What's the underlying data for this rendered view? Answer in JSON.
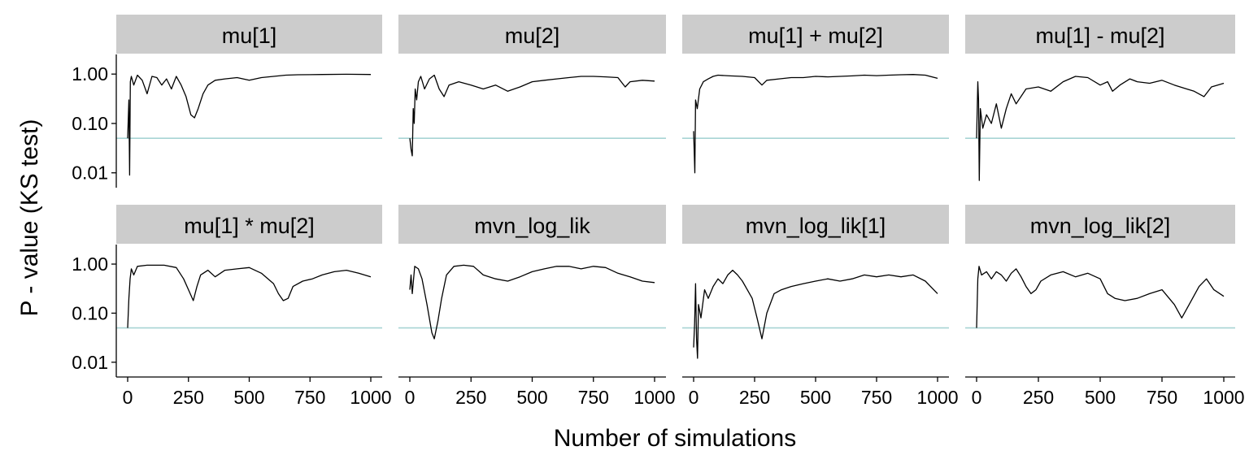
{
  "chart_data": {
    "type": "line",
    "layout": "facet-grid 2 rows x 4 columns",
    "xlabel": "Number of simulations",
    "ylabel": "P - value (KS test)",
    "y_scale": "log10",
    "xlim": [
      0,
      1000
    ],
    "ylim": [
      0.005,
      2.5
    ],
    "x_ticks": [
      0,
      250,
      500,
      750,
      1000
    ],
    "x_tick_labels": [
      "0",
      "250",
      "500",
      "750",
      "1000"
    ],
    "y_ticks": [
      1.0,
      0.1,
      0.01
    ],
    "y_tick_labels": [
      "1.00",
      "0.10",
      "0.01"
    ],
    "reference_line": {
      "y": 0.05
    },
    "grid": false,
    "legend": "none",
    "colors": {
      "series": "#000000",
      "reference_line": "#a8d4d4",
      "strip_background": "#cccccc",
      "axis": "#000000"
    },
    "panels": [
      {
        "title": "mu[1]",
        "points": [
          [
            0,
            0.05
          ],
          [
            5,
            0.3
          ],
          [
            8,
            0.009
          ],
          [
            11,
            0.7
          ],
          [
            15,
            0.9
          ],
          [
            25,
            0.6
          ],
          [
            40,
            0.95
          ],
          [
            60,
            0.75
          ],
          [
            80,
            0.4
          ],
          [
            100,
            0.9
          ],
          [
            120,
            0.85
          ],
          [
            140,
            0.6
          ],
          [
            160,
            0.8
          ],
          [
            180,
            0.5
          ],
          [
            200,
            0.9
          ],
          [
            220,
            0.6
          ],
          [
            240,
            0.35
          ],
          [
            260,
            0.15
          ],
          [
            275,
            0.13
          ],
          [
            290,
            0.2
          ],
          [
            310,
            0.4
          ],
          [
            330,
            0.6
          ],
          [
            360,
            0.75
          ],
          [
            400,
            0.8
          ],
          [
            450,
            0.85
          ],
          [
            500,
            0.75
          ],
          [
            550,
            0.85
          ],
          [
            600,
            0.9
          ],
          [
            650,
            0.95
          ],
          [
            700,
            0.97
          ],
          [
            800,
            0.98
          ],
          [
            900,
            0.99
          ],
          [
            1000,
            0.98
          ]
        ]
      },
      {
        "title": "mu[2]",
        "points": [
          [
            0,
            0.05
          ],
          [
            5,
            0.03
          ],
          [
            10,
            0.022
          ],
          [
            14,
            0.2
          ],
          [
            18,
            0.1
          ],
          [
            22,
            0.5
          ],
          [
            28,
            0.3
          ],
          [
            35,
            0.7
          ],
          [
            45,
            0.9
          ],
          [
            60,
            0.5
          ],
          [
            80,
            0.8
          ],
          [
            100,
            0.95
          ],
          [
            120,
            0.5
          ],
          [
            140,
            0.35
          ],
          [
            160,
            0.6
          ],
          [
            200,
            0.7
          ],
          [
            250,
            0.6
          ],
          [
            300,
            0.5
          ],
          [
            350,
            0.6
          ],
          [
            400,
            0.45
          ],
          [
            450,
            0.55
          ],
          [
            500,
            0.7
          ],
          [
            550,
            0.75
          ],
          [
            600,
            0.8
          ],
          [
            650,
            0.85
          ],
          [
            700,
            0.9
          ],
          [
            750,
            0.9
          ],
          [
            800,
            0.88
          ],
          [
            850,
            0.85
          ],
          [
            880,
            0.55
          ],
          [
            900,
            0.7
          ],
          [
            950,
            0.75
          ],
          [
            1000,
            0.72
          ]
        ]
      },
      {
        "title": "mu[1] + mu[2]",
        "points": [
          [
            0,
            0.07
          ],
          [
            5,
            0.01
          ],
          [
            8,
            0.3
          ],
          [
            15,
            0.2
          ],
          [
            25,
            0.5
          ],
          [
            40,
            0.7
          ],
          [
            60,
            0.8
          ],
          [
            80,
            0.9
          ],
          [
            100,
            0.95
          ],
          [
            150,
            0.92
          ],
          [
            200,
            0.9
          ],
          [
            250,
            0.85
          ],
          [
            280,
            0.6
          ],
          [
            300,
            0.75
          ],
          [
            350,
            0.8
          ],
          [
            400,
            0.85
          ],
          [
            450,
            0.85
          ],
          [
            500,
            0.9
          ],
          [
            550,
            0.88
          ],
          [
            600,
            0.9
          ],
          [
            650,
            0.92
          ],
          [
            700,
            0.95
          ],
          [
            750,
            0.93
          ],
          [
            800,
            0.95
          ],
          [
            850,
            0.97
          ],
          [
            900,
            0.98
          ],
          [
            950,
            0.95
          ],
          [
            1000,
            0.82
          ]
        ]
      },
      {
        "title": "mu[1] - mu[2]",
        "points": [
          [
            0,
            0.05
          ],
          [
            5,
            0.7
          ],
          [
            8,
            0.3
          ],
          [
            11,
            0.007
          ],
          [
            15,
            0.2
          ],
          [
            25,
            0.08
          ],
          [
            40,
            0.15
          ],
          [
            60,
            0.1
          ],
          [
            80,
            0.25
          ],
          [
            100,
            0.08
          ],
          [
            120,
            0.2
          ],
          [
            140,
            0.4
          ],
          [
            160,
            0.25
          ],
          [
            200,
            0.5
          ],
          [
            250,
            0.55
          ],
          [
            300,
            0.45
          ],
          [
            350,
            0.7
          ],
          [
            400,
            0.9
          ],
          [
            450,
            0.85
          ],
          [
            500,
            0.6
          ],
          [
            530,
            0.7
          ],
          [
            550,
            0.45
          ],
          [
            580,
            0.6
          ],
          [
            620,
            0.8
          ],
          [
            650,
            0.7
          ],
          [
            700,
            0.65
          ],
          [
            750,
            0.75
          ],
          [
            800,
            0.6
          ],
          [
            850,
            0.5
          ],
          [
            880,
            0.45
          ],
          [
            920,
            0.35
          ],
          [
            950,
            0.55
          ],
          [
            1000,
            0.65
          ]
        ]
      },
      {
        "title": "mu[1] * mu[2]",
        "points": [
          [
            0,
            0.05
          ],
          [
            5,
            0.2
          ],
          [
            10,
            0.5
          ],
          [
            15,
            0.8
          ],
          [
            25,
            0.6
          ],
          [
            40,
            0.9
          ],
          [
            80,
            0.95
          ],
          [
            150,
            0.95
          ],
          [
            200,
            0.85
          ],
          [
            230,
            0.5
          ],
          [
            250,
            0.3
          ],
          [
            270,
            0.18
          ],
          [
            285,
            0.35
          ],
          [
            300,
            0.6
          ],
          [
            330,
            0.75
          ],
          [
            360,
            0.55
          ],
          [
            400,
            0.75
          ],
          [
            450,
            0.8
          ],
          [
            500,
            0.85
          ],
          [
            550,
            0.65
          ],
          [
            600,
            0.4
          ],
          [
            620,
            0.25
          ],
          [
            640,
            0.18
          ],
          [
            660,
            0.2
          ],
          [
            680,
            0.35
          ],
          [
            720,
            0.45
          ],
          [
            760,
            0.5
          ],
          [
            800,
            0.6
          ],
          [
            850,
            0.7
          ],
          [
            900,
            0.75
          ],
          [
            950,
            0.65
          ],
          [
            1000,
            0.55
          ]
        ]
      },
      {
        "title": "mvn_log_lik",
        "points": [
          [
            0,
            0.3
          ],
          [
            5,
            0.6
          ],
          [
            10,
            0.25
          ],
          [
            20,
            0.9
          ],
          [
            35,
            0.8
          ],
          [
            50,
            0.5
          ],
          [
            70,
            0.15
          ],
          [
            90,
            0.04
          ],
          [
            100,
            0.03
          ],
          [
            115,
            0.07
          ],
          [
            130,
            0.2
          ],
          [
            150,
            0.6
          ],
          [
            180,
            0.9
          ],
          [
            220,
            0.95
          ],
          [
            260,
            0.9
          ],
          [
            300,
            0.6
          ],
          [
            350,
            0.5
          ],
          [
            400,
            0.45
          ],
          [
            450,
            0.55
          ],
          [
            500,
            0.7
          ],
          [
            550,
            0.8
          ],
          [
            600,
            0.9
          ],
          [
            650,
            0.9
          ],
          [
            700,
            0.8
          ],
          [
            750,
            0.9
          ],
          [
            800,
            0.85
          ],
          [
            850,
            0.65
          ],
          [
            900,
            0.55
          ],
          [
            950,
            0.45
          ],
          [
            1000,
            0.42
          ]
        ]
      },
      {
        "title": "mvn_log_lik[1]",
        "points": [
          [
            0,
            0.02
          ],
          [
            4,
            0.06
          ],
          [
            8,
            0.4
          ],
          [
            12,
            0.03
          ],
          [
            16,
            0.012
          ],
          [
            20,
            0.15
          ],
          [
            30,
            0.08
          ],
          [
            45,
            0.3
          ],
          [
            60,
            0.2
          ],
          [
            80,
            0.35
          ],
          [
            100,
            0.5
          ],
          [
            120,
            0.4
          ],
          [
            140,
            0.6
          ],
          [
            160,
            0.75
          ],
          [
            180,
            0.6
          ],
          [
            200,
            0.45
          ],
          [
            220,
            0.3
          ],
          [
            240,
            0.2
          ],
          [
            260,
            0.08
          ],
          [
            280,
            0.03
          ],
          [
            300,
            0.1
          ],
          [
            330,
            0.25
          ],
          [
            360,
            0.3
          ],
          [
            400,
            0.35
          ],
          [
            450,
            0.4
          ],
          [
            500,
            0.45
          ],
          [
            550,
            0.5
          ],
          [
            600,
            0.45
          ],
          [
            650,
            0.5
          ],
          [
            700,
            0.6
          ],
          [
            750,
            0.55
          ],
          [
            800,
            0.6
          ],
          [
            850,
            0.55
          ],
          [
            900,
            0.6
          ],
          [
            950,
            0.45
          ],
          [
            1000,
            0.25
          ]
        ]
      },
      {
        "title": "mvn_log_lik[2]",
        "points": [
          [
            0,
            0.05
          ],
          [
            5,
            0.5
          ],
          [
            10,
            0.9
          ],
          [
            20,
            0.6
          ],
          [
            40,
            0.7
          ],
          [
            60,
            0.5
          ],
          [
            80,
            0.7
          ],
          [
            100,
            0.6
          ],
          [
            120,
            0.45
          ],
          [
            140,
            0.65
          ],
          [
            160,
            0.8
          ],
          [
            180,
            0.55
          ],
          [
            200,
            0.35
          ],
          [
            220,
            0.25
          ],
          [
            240,
            0.3
          ],
          [
            260,
            0.45
          ],
          [
            300,
            0.6
          ],
          [
            350,
            0.7
          ],
          [
            400,
            0.55
          ],
          [
            450,
            0.65
          ],
          [
            500,
            0.5
          ],
          [
            530,
            0.25
          ],
          [
            560,
            0.2
          ],
          [
            600,
            0.18
          ],
          [
            650,
            0.2
          ],
          [
            700,
            0.25
          ],
          [
            750,
            0.3
          ],
          [
            800,
            0.15
          ],
          [
            830,
            0.08
          ],
          [
            860,
            0.15
          ],
          [
            900,
            0.35
          ],
          [
            930,
            0.5
          ],
          [
            960,
            0.3
          ],
          [
            1000,
            0.22
          ]
        ]
      }
    ]
  }
}
